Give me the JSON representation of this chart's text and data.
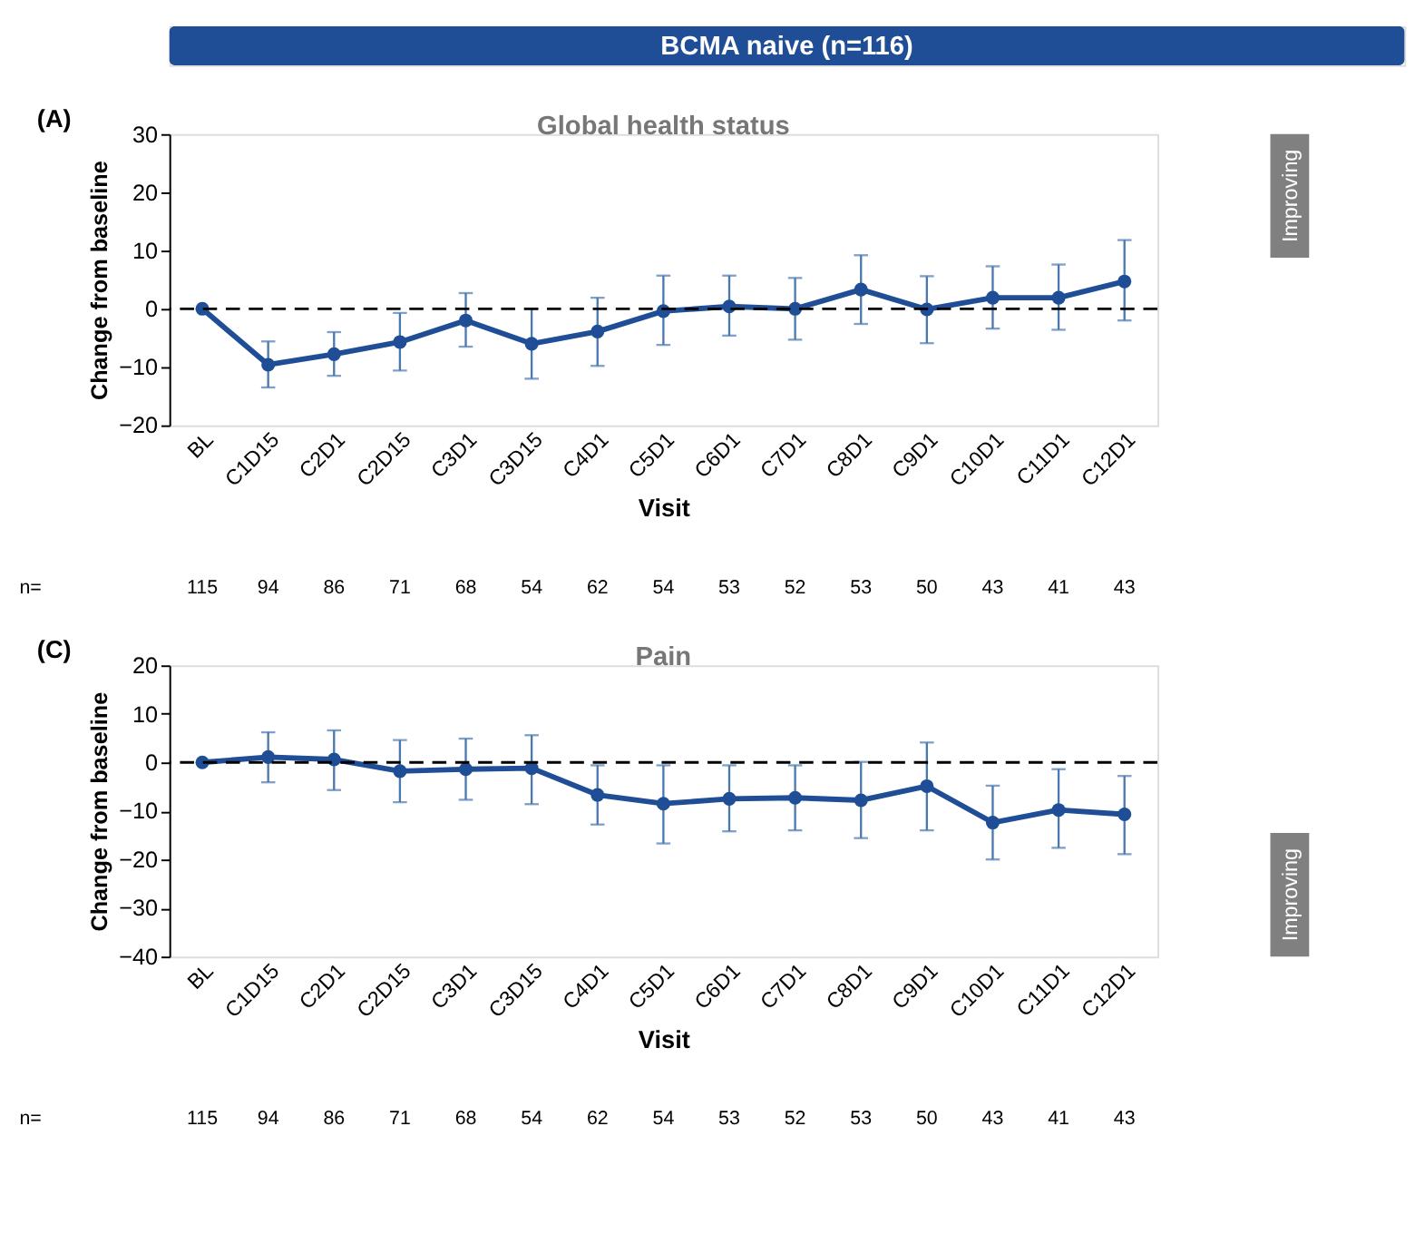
{
  "chart_data": [
    {
      "type": "line",
      "title": "BCMA naive (n=116)",
      "subtitle": "Global health status",
      "xlabel": "Visit",
      "ylabel": "Change from baseline",
      "categories": [
        "BL",
        "C1D15",
        "C2D1",
        "C2D15",
        "C3D1",
        "C3D15",
        "C4D1",
        "C5D1",
        "C6D1",
        "C7D1",
        "C8D1",
        "C9D1",
        "C10D1",
        "C11D1",
        "C12D1"
      ],
      "series": [
        {
          "color": "#1f4e96",
          "values": [
            0,
            -9.6,
            -7.8,
            -5.7,
            -2,
            -6,
            -3.9,
            -0.4,
            0.4,
            0,
            3.3,
            -0.1,
            1.9,
            1.9,
            4.7
          ],
          "errors": [
            null,
            [
              -13.5,
              -5.6
            ],
            [
              -11.5,
              -4
            ],
            [
              -10.6,
              -0.7
            ],
            [
              -6.5,
              2.7
            ],
            [
              -12,
              0
            ],
            [
              -9.8,
              1.9
            ],
            [
              -6.2,
              5.7
            ],
            [
              -4.6,
              5.7
            ],
            [
              -5.3,
              5.3
            ],
            [
              -2.6,
              9.2
            ],
            [
              -5.9,
              5.6
            ],
            [
              -3.4,
              7.3
            ],
            [
              -3.6,
              7.6
            ],
            [
              -2,
              11.8
            ]
          ]
        }
      ],
      "ylim": [
        -20,
        30
      ],
      "yticks": [
        -20,
        -10,
        0,
        10,
        20,
        30
      ],
      "marker": "circle",
      "grid": false,
      "ref_lines": [
        {
          "axis": "y",
          "value": 0,
          "color": "#000000",
          "line_style": "dashed"
        }
      ],
      "annotations": [
        "(A)",
        "Improving",
        "n=",
        "115",
        "94",
        "86",
        "71",
        "68",
        "54",
        "62",
        "54",
        "53",
        "52",
        "53",
        "50",
        "43",
        "41",
        "43"
      ]
    },
    {
      "type": "line",
      "subtitle": "Pain",
      "xlabel": "Visit",
      "ylabel": "Change from baseline",
      "categories": [
        "BL",
        "C1D15",
        "C2D1",
        "C2D15",
        "C3D1",
        "C3D15",
        "C4D1",
        "C5D1",
        "C6D1",
        "C7D1",
        "C8D1",
        "C9D1",
        "C10D1",
        "C11D1",
        "C12D1"
      ],
      "series": [
        {
          "color": "#1f4e96",
          "values": [
            0,
            1.1,
            0.6,
            -1.8,
            -1.4,
            -1.2,
            -6.7,
            -8.5,
            -7.5,
            -7.3,
            -7.8,
            -4.9,
            -12.4,
            -9.8,
            -10.7
          ],
          "errors": [
            null,
            [
              -4.1,
              6.2
            ],
            [
              -5.7,
              6.6
            ],
            [
              -8.2,
              4.6
            ],
            [
              -7.7,
              4.9
            ],
            [
              -8.6,
              5.6
            ],
            [
              -12.8,
              -0.6
            ],
            [
              -16.7,
              -0.6
            ],
            [
              -14.2,
              -0.6
            ],
            [
              -14,
              -0.6
            ],
            [
              -15.6,
              0.1
            ],
            [
              -14,
              4.1
            ],
            [
              -20,
              -4.8
            ],
            [
              -17.6,
              -1.4
            ],
            [
              -18.9,
              -2.8
            ]
          ]
        }
      ],
      "ylim": [
        -40,
        20
      ],
      "yticks": [
        -40,
        -30,
        -20,
        -10,
        0,
        10,
        20
      ],
      "marker": "circle",
      "grid": false,
      "ref_lines": [
        {
          "axis": "y",
          "value": 0,
          "color": "#000000",
          "line_style": "dashed"
        }
      ],
      "annotations": [
        "(C)",
        "Improving",
        "n=",
        "115",
        "94",
        "86",
        "71",
        "68",
        "54",
        "62",
        "54",
        "53",
        "52",
        "53",
        "50",
        "43",
        "41",
        "43"
      ]
    }
  ]
}
